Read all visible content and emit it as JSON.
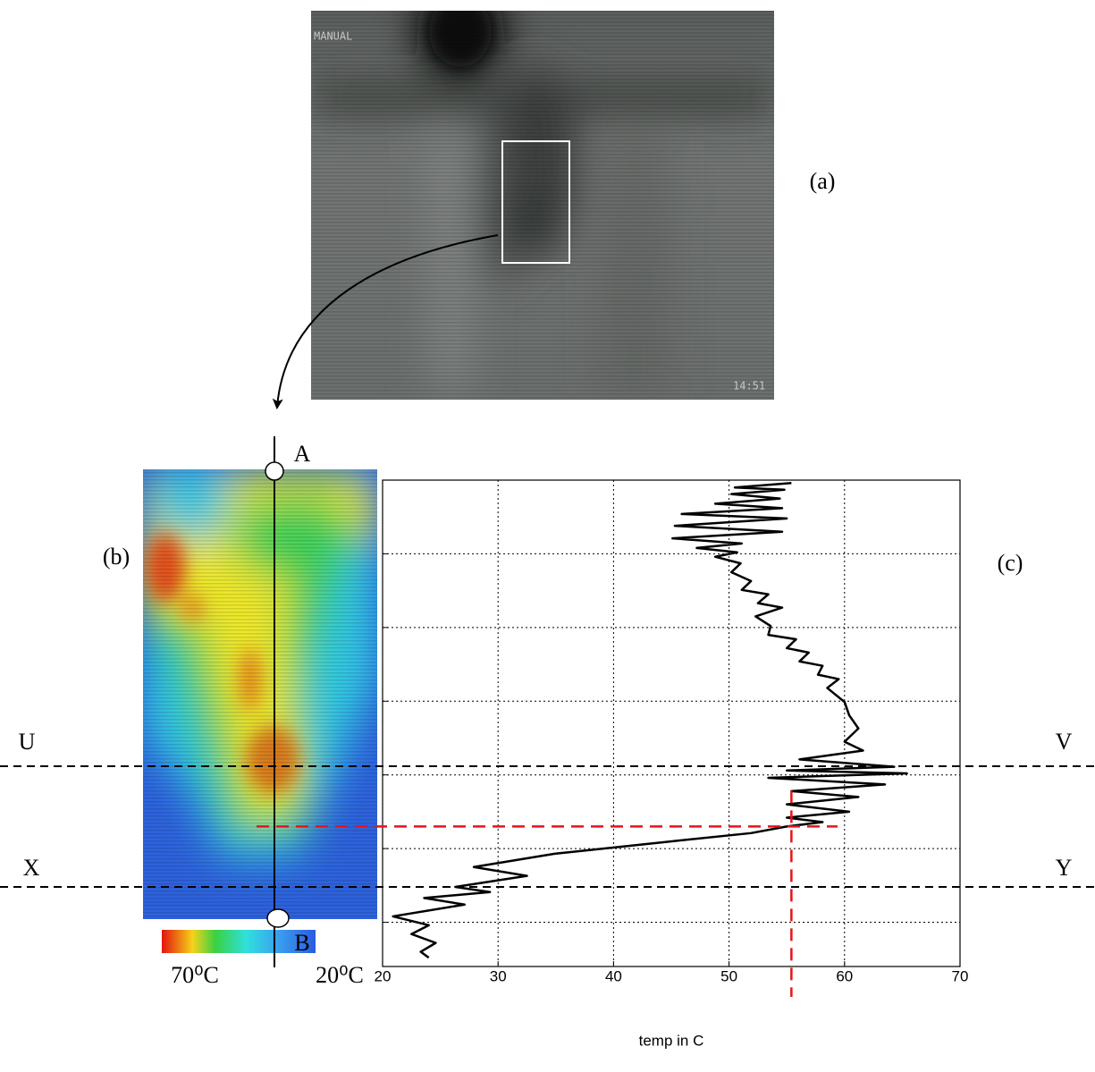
{
  "figure": {
    "panel_a": "(a)",
    "panel_b": "(b)",
    "panel_c": "(c)",
    "camera_mode": "MANUAL",
    "camera_time": "14:51",
    "point_a": "A",
    "point_b": "B",
    "line_u": "U",
    "line_v": "V",
    "line_x": "X",
    "line_y": "Y",
    "colorbar_hot": "70⁰C",
    "colorbar_cold": "20⁰C"
  },
  "chart_data": {
    "type": "line",
    "orientation": "vertical",
    "xlabel": "temp in C",
    "xlim": [
      20,
      70
    ],
    "xticks": [
      20,
      30,
      40,
      50,
      60,
      70
    ],
    "ylim": [
      0,
      66
    ],
    "yticks": [
      10,
      20,
      30,
      40,
      50,
      60
    ],
    "grid": true,
    "color": "#000000",
    "y": [
      0.4,
      1.0,
      1.3,
      1.9,
      2.5,
      3.2,
      3.8,
      4.6,
      5.2,
      6.2,
      7.0,
      7.9,
      8.6,
      9.2,
      9.8,
      10.4,
      11.3,
      12.5,
      13.7,
      14.9,
      15.5,
      16.7,
      17.3,
      18.5,
      19.8,
      21.0,
      21.6,
      22.8,
      23.4,
      24.6,
      25.2,
      26.4,
      27.0,
      28.2,
      30.1,
      31.9,
      33.7,
      35.5,
      36.7,
      37.9,
      38.9,
      39.4,
      39.8,
      40.4,
      41.3,
      42.2,
      43.0,
      44.0,
      45.0,
      45.8,
      46.4,
      47.0,
      47.9,
      49.1,
      50.7,
      52.5,
      53.7,
      55.2,
      55.9,
      56.7,
      57.6,
      59.2,
      60.4,
      61.6,
      62.8,
      64.0,
      64.8
    ],
    "values": [
      55.4,
      50.5,
      54.8,
      50.2,
      54.4,
      48.8,
      54.6,
      45.9,
      55.0,
      45.3,
      54.6,
      45.1,
      51.1,
      47.2,
      50.7,
      48.8,
      51.0,
      50.2,
      51.9,
      51.1,
      53.4,
      52.5,
      54.6,
      52.3,
      53.6,
      53.4,
      55.8,
      55.0,
      56.9,
      56.1,
      58.1,
      57.7,
      59.5,
      58.5,
      60.0,
      60.4,
      61.2,
      60.0,
      61.6,
      56.1,
      64.3,
      55.0,
      65.4,
      53.4,
      63.5,
      55.4,
      61.2,
      55.0,
      60.4,
      55.0,
      58.1,
      55.0,
      51.9,
      44.5,
      34.9,
      27.9,
      32.5,
      26.3,
      29.3,
      23.6,
      27.1,
      20.9,
      24.0,
      22.5,
      24.6,
      23.3,
      24.0
    ],
    "reference": {
      "value": 55.4,
      "y": 47.0,
      "color": "#e8131b"
    }
  }
}
